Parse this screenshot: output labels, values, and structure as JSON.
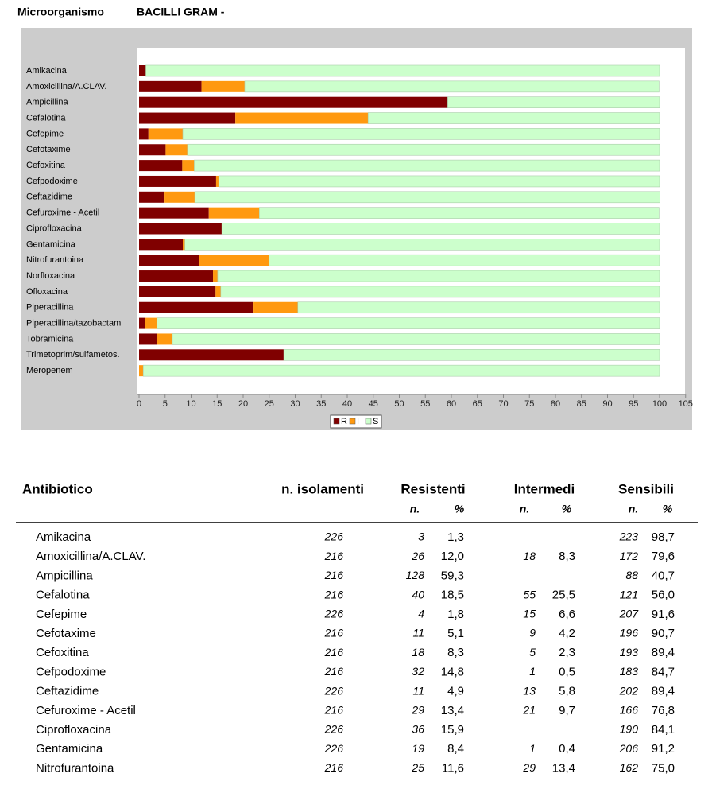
{
  "header": {
    "label": "Microorganismo",
    "organism": "BACILLI GRAM -"
  },
  "chart_data": {
    "type": "stacked-bar-horizontal",
    "categories": [
      "Amikacina",
      "Amoxicillina/A.CLAV.",
      "Ampicillina",
      "Cefalotina",
      "Cefepime",
      "Cefotaxime",
      "Cefoxitina",
      "Cefpodoxime",
      "Ceftazidime",
      "Cefuroxime - Acetil",
      "Ciprofloxacina",
      "Gentamicina",
      "Nitrofurantoina",
      "Norfloxacina",
      "Ofloxacina",
      "Piperacillina",
      "Piperacillina/tazobactam",
      "Tobramicina",
      "Trimetoprim/sulfametos.",
      "Meropenem"
    ],
    "series": [
      {
        "name": "R",
        "color": "#800000",
        "values": [
          1.3,
          12.0,
          59.3,
          18.5,
          1.8,
          5.1,
          8.3,
          14.8,
          4.9,
          13.4,
          15.9,
          8.4,
          11.6,
          14.2,
          14.7,
          22.0,
          1.1,
          3.4,
          27.8,
          0
        ]
      },
      {
        "name": "I",
        "color": "#ff9910",
        "values": [
          0,
          8.3,
          0,
          25.5,
          6.6,
          4.2,
          2.3,
          0.5,
          5.8,
          9.7,
          0,
          0.4,
          13.4,
          0.9,
          1.0,
          8.5,
          2.3,
          3.0,
          0,
          0.8
        ]
      },
      {
        "name": "S",
        "color": "#ccffcc",
        "values": [
          98.7,
          79.6,
          40.7,
          56.0,
          91.6,
          90.7,
          89.4,
          84.7,
          89.4,
          76.8,
          84.1,
          91.2,
          75.0,
          84.9,
          84.3,
          69.5,
          96.6,
          93.6,
          72.2,
          99.2
        ]
      }
    ],
    "xlim": [
      0,
      105
    ],
    "xticks": [
      0,
      5,
      10,
      15,
      20,
      25,
      30,
      35,
      40,
      45,
      50,
      55,
      60,
      65,
      70,
      75,
      80,
      85,
      90,
      95,
      100,
      105
    ]
  },
  "table": {
    "headers": [
      "Antibiotico",
      "n. isolamenti",
      "Resistenti",
      "Intermedi",
      "Sensibili"
    ],
    "subheaders": [
      "n.",
      "%",
      "n.",
      "%",
      "n.",
      "%"
    ],
    "rows": [
      [
        "Amikacina",
        "226",
        "3",
        "1,3",
        null,
        null,
        "223",
        "98,7"
      ],
      [
        "Amoxicillina/A.CLAV.",
        "216",
        "26",
        "12,0",
        "18",
        "8,3",
        "172",
        "79,6"
      ],
      [
        "Ampicillina",
        "216",
        "128",
        "59,3",
        null,
        null,
        "88",
        "40,7"
      ],
      [
        "Cefalotina",
        "216",
        "40",
        "18,5",
        "55",
        "25,5",
        "121",
        "56,0"
      ],
      [
        "Cefepime",
        "226",
        "4",
        "1,8",
        "15",
        "6,6",
        "207",
        "91,6"
      ],
      [
        "Cefotaxime",
        "216",
        "11",
        "5,1",
        "9",
        "4,2",
        "196",
        "90,7"
      ],
      [
        "Cefoxitina",
        "216",
        "18",
        "8,3",
        "5",
        "2,3",
        "193",
        "89,4"
      ],
      [
        "Cefpodoxime",
        "216",
        "32",
        "14,8",
        "1",
        "0,5",
        "183",
        "84,7"
      ],
      [
        "Ceftazidime",
        "226",
        "11",
        "4,9",
        "13",
        "5,8",
        "202",
        "89,4"
      ],
      [
        "Cefuroxime - Acetil",
        "216",
        "29",
        "13,4",
        "21",
        "9,7",
        "166",
        "76,8"
      ],
      [
        "Ciprofloxacina",
        "226",
        "36",
        "15,9",
        null,
        null,
        "190",
        "84,1"
      ],
      [
        "Gentamicina",
        "226",
        "19",
        "8,4",
        "1",
        "0,4",
        "206",
        "91,2"
      ],
      [
        "Nitrofurantoina",
        "216",
        "25",
        "11,6",
        "29",
        "13,4",
        "162",
        "75,0"
      ]
    ]
  }
}
